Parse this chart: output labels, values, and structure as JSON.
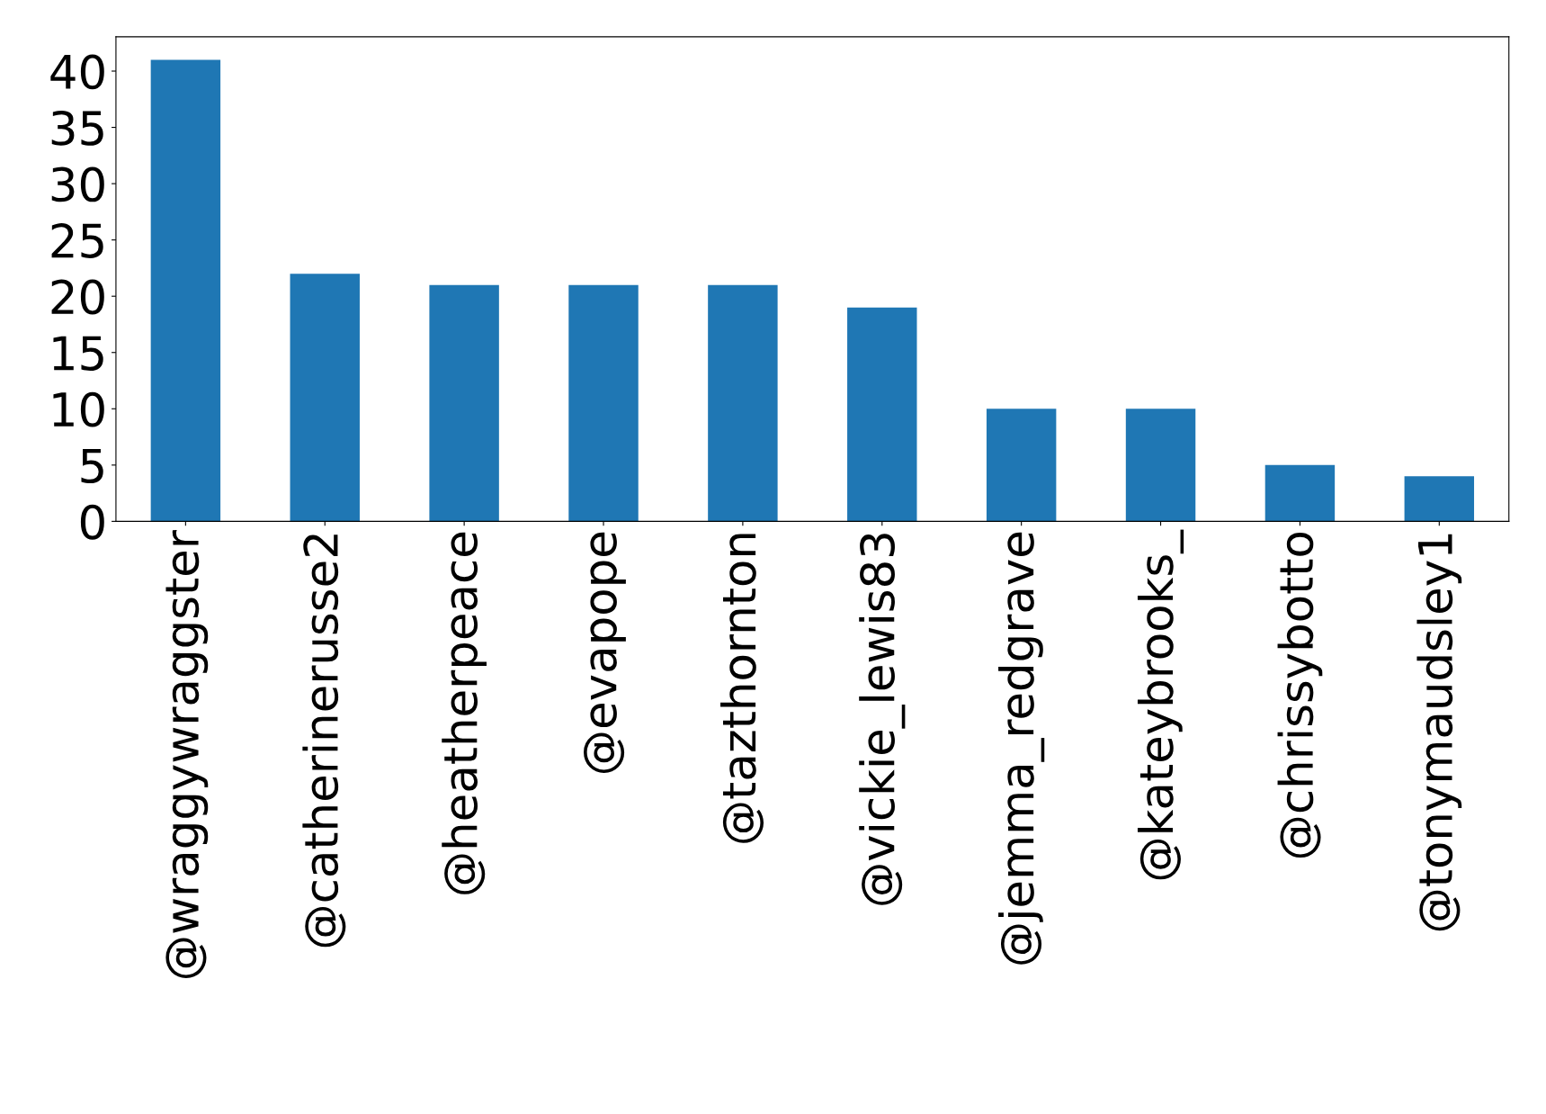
{
  "chart_data": {
    "type": "bar",
    "categories": [
      "@wraggywraggster",
      "@catherinerusse2",
      "@heatherpeace",
      "@evapope",
      "@tazthornton",
      "@vickie_lewis83",
      "@jemma_redgrave",
      "@kateybrooks_",
      "@chrissybotto",
      "@tonymaudsley1"
    ],
    "values": [
      41,
      22,
      21,
      21,
      21,
      19,
      10,
      10,
      5,
      4
    ],
    "color": "#1f77b4",
    "ylim": [
      0,
      43.05
    ],
    "yticks": [
      0,
      5,
      10,
      15,
      20,
      25,
      30,
      35,
      40
    ],
    "grid": false,
    "legend": false
  }
}
